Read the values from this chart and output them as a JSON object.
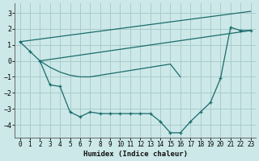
{
  "xlabel": "Humidex (Indice chaleur)",
  "background_color": "#cce8e8",
  "grid_color": "#aacccc",
  "line_color": "#1a6b6b",
  "xlim": [
    -0.5,
    23.5
  ],
  "ylim": [
    -4.8,
    3.6
  ],
  "yticks": [
    -4,
    -3,
    -2,
    -1,
    0,
    1,
    2,
    3
  ],
  "xticks": [
    0,
    1,
    2,
    3,
    4,
    5,
    6,
    7,
    8,
    9,
    10,
    11,
    12,
    13,
    14,
    15,
    16,
    17,
    18,
    19,
    20,
    21,
    22,
    23
  ],
  "series": [
    {
      "x": [
        0,
        1,
        2,
        3,
        4,
        5,
        6,
        7,
        8,
        9,
        10,
        11,
        12,
        13,
        14,
        15,
        16,
        17,
        18,
        19,
        20,
        21,
        22,
        23
      ],
      "y": [
        1.2,
        0.6,
        0.0,
        -1.5,
        -1.6,
        -3.2,
        -3.5,
        -3.2,
        -3.3,
        -3.3,
        -3.3,
        -3.3,
        -3.3,
        -3.3,
        -3.8,
        -4.5,
        -4.5,
        -3.8,
        -3.2,
        -2.6,
        -1.1,
        2.1,
        1.9,
        1.9
      ],
      "marker": true
    },
    {
      "x": [
        0,
        23
      ],
      "y": [
        1.2,
        3.1
      ],
      "marker": false
    },
    {
      "comment": "line from (2,0) to (23,1.9)",
      "x": [
        2,
        23
      ],
      "y": [
        0.0,
        1.9
      ],
      "marker": false
    },
    {
      "x": [
        2,
        3,
        4,
        5,
        6,
        7,
        8,
        9,
        10,
        11,
        12,
        13,
        14,
        15,
        16
      ],
      "y": [
        0.0,
        -0.4,
        -0.7,
        -0.9,
        -1.0,
        -1.0,
        -0.9,
        -0.8,
        -0.7,
        -0.6,
        -0.5,
        -0.4,
        -0.3,
        -0.2,
        -1.0
      ],
      "marker": false
    }
  ]
}
